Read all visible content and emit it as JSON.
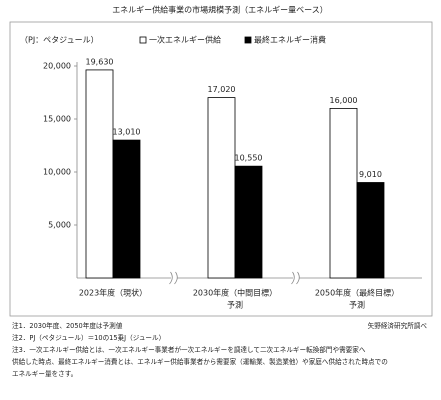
{
  "chart_data": {
    "type": "bar",
    "title": "エネルギー供給事業の市場規模予測（エネルギー量ベース）",
    "y_label": "（PJ：ペタジュール）",
    "categories": [
      [
        "2023年度（現状）"
      ],
      [
        "2030年度（中間目標）",
        "予測"
      ],
      [
        "2050年度（最終目標）",
        "予測"
      ]
    ],
    "series": [
      {
        "name": "一次エネルギー供給",
        "color": "#ffffff",
        "values": [
          19630,
          17020,
          16000
        ],
        "value_labels": [
          "19,630",
          "17,020",
          "16,000"
        ]
      },
      {
        "name": "最終エネルギー消費",
        "color": "#000000",
        "values": [
          13010,
          10550,
          9010
        ],
        "value_labels": [
          "13,010",
          "10,550",
          "9,010"
        ]
      }
    ],
    "ylim": [
      0,
      20000
    ],
    "yticks": [
      {
        "value": 5000,
        "label": "5,000"
      },
      {
        "value": 10000,
        "label": "10,000"
      },
      {
        "value": 15000,
        "label": "15,000"
      },
      {
        "value": 20000,
        "label": "20,000"
      }
    ],
    "source": "矢野経済研究所調べ",
    "notes": [
      "注1．2030年度、2050年度は予測値",
      "注2．PJ（ペタジュール）＝10の15乗J（ジュール）",
      "注3．一次エネルギー供給とは、一次エネルギー事業者が一次エネルギーを調達して二次エネルギー転換部門や需要家へ",
      "供給した時点、最終エネルギー消費とは、エネルギー供給事業者から需要家（運輸業、製造業他）や家庭へ供給された時点での",
      "エネルギー量をさす。"
    ]
  }
}
